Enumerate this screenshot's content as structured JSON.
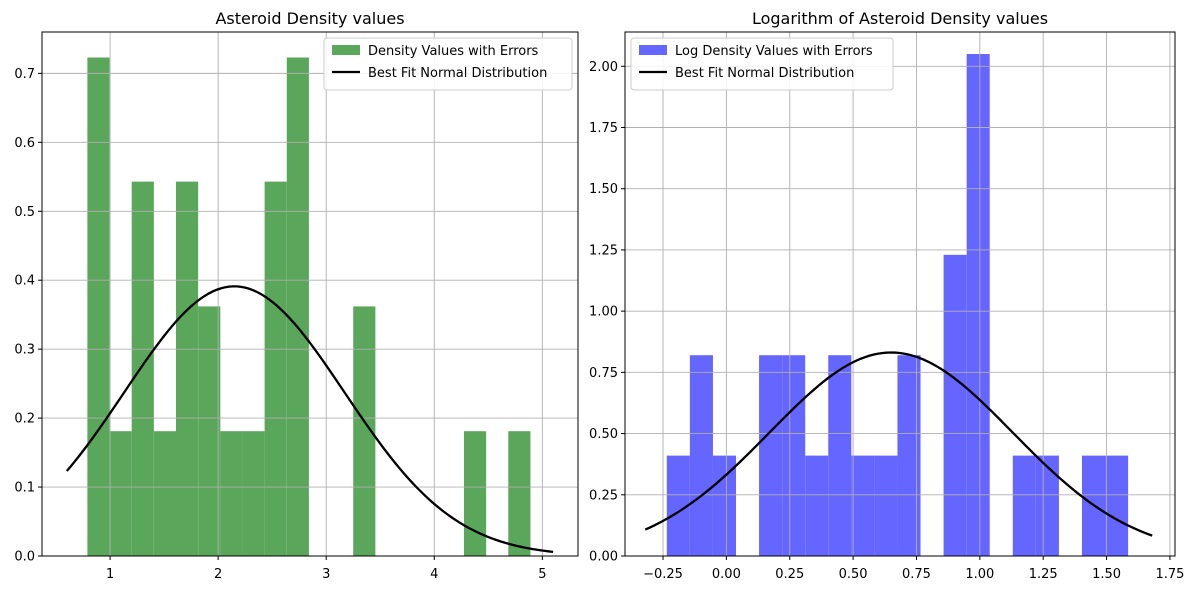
{
  "chart_data": [
    {
      "type": "bar",
      "title": "Asteroid Density values",
      "xlabel": "",
      "ylabel": "",
      "xlim": [
        0.37,
        5.33
      ],
      "ylim": [
        0,
        0.76
      ],
      "x_ticks": [
        1,
        2,
        3,
        4,
        5
      ],
      "y_ticks": [
        0.0,
        0.1,
        0.2,
        0.3,
        0.4,
        0.5,
        0.6,
        0.7
      ],
      "grid": true,
      "legend_position": "top-right",
      "bar_color": "#5aa65a",
      "legend": [
        "Density Values with Errors",
        "Best Fit Normal Distribution"
      ],
      "histogram": {
        "bin_edges": [
          0.79,
          0.995,
          1.2,
          1.405,
          1.61,
          1.815,
          2.02,
          2.225,
          2.43,
          2.635,
          2.84,
          3.045,
          3.25,
          3.455,
          3.66,
          3.865,
          4.07,
          4.275,
          4.48,
          4.685,
          4.89
        ],
        "values": [
          0.723,
          0.181,
          0.543,
          0.181,
          0.543,
          0.362,
          0.181,
          0.181,
          0.543,
          0.723,
          0,
          0,
          0.362,
          0,
          0,
          0,
          0,
          0.181,
          0,
          0.181
        ]
      },
      "fit_curve": {
        "name": "Best Fit Normal Distribution",
        "mean": 2.15,
        "std": 1.02,
        "x_range": [
          0.6,
          5.1
        ],
        "color": "#000000"
      }
    },
    {
      "type": "bar",
      "title": "Logarithm of Asteroid Density values",
      "xlabel": "",
      "ylabel": "",
      "xlim": [
        -0.4,
        1.77
      ],
      "ylim": [
        0,
        2.14
      ],
      "x_ticks": [
        -0.25,
        0.0,
        0.25,
        0.5,
        0.75,
        1.0,
        1.25,
        1.5,
        1.75
      ],
      "x_tick_labels": [
        "−0.25",
        "0.00",
        "0.25",
        "0.50",
        "0.75",
        "1.00",
        "1.25",
        "1.50",
        "1.75"
      ],
      "y_ticks": [
        0.0,
        0.25,
        0.5,
        0.75,
        1.0,
        1.25,
        1.5,
        1.75,
        2.0
      ],
      "y_tick_labels": [
        "0.00",
        "0.25",
        "0.50",
        "0.75",
        "1.00",
        "1.25",
        "1.50",
        "1.75",
        "2.00"
      ],
      "grid": true,
      "legend_position": "top-left",
      "bar_color": "#6565ff",
      "legend": [
        "Log Density Values with Errors",
        "Best Fit Normal Distribution"
      ],
      "histogram": {
        "bin_edges": [
          -0.235,
          -0.144,
          -0.053,
          0.038,
          0.129,
          0.22,
          0.311,
          0.402,
          0.493,
          0.584,
          0.675,
          0.766,
          0.857,
          0.948,
          1.039,
          1.13,
          1.221,
          1.312,
          1.403,
          1.494,
          1.585
        ],
        "values": [
          0.41,
          0.82,
          0.41,
          0,
          0.82,
          0.82,
          0.41,
          0.82,
          0.41,
          0.41,
          0.82,
          0,
          1.23,
          2.05,
          0,
          0.41,
          0.41,
          0,
          0.41,
          0.41
        ]
      },
      "fit_curve": {
        "name": "Best Fit Normal Distribution",
        "mean": 0.65,
        "std": 0.48,
        "x_range": [
          -0.32,
          1.68
        ],
        "color": "#000000"
      }
    }
  ]
}
